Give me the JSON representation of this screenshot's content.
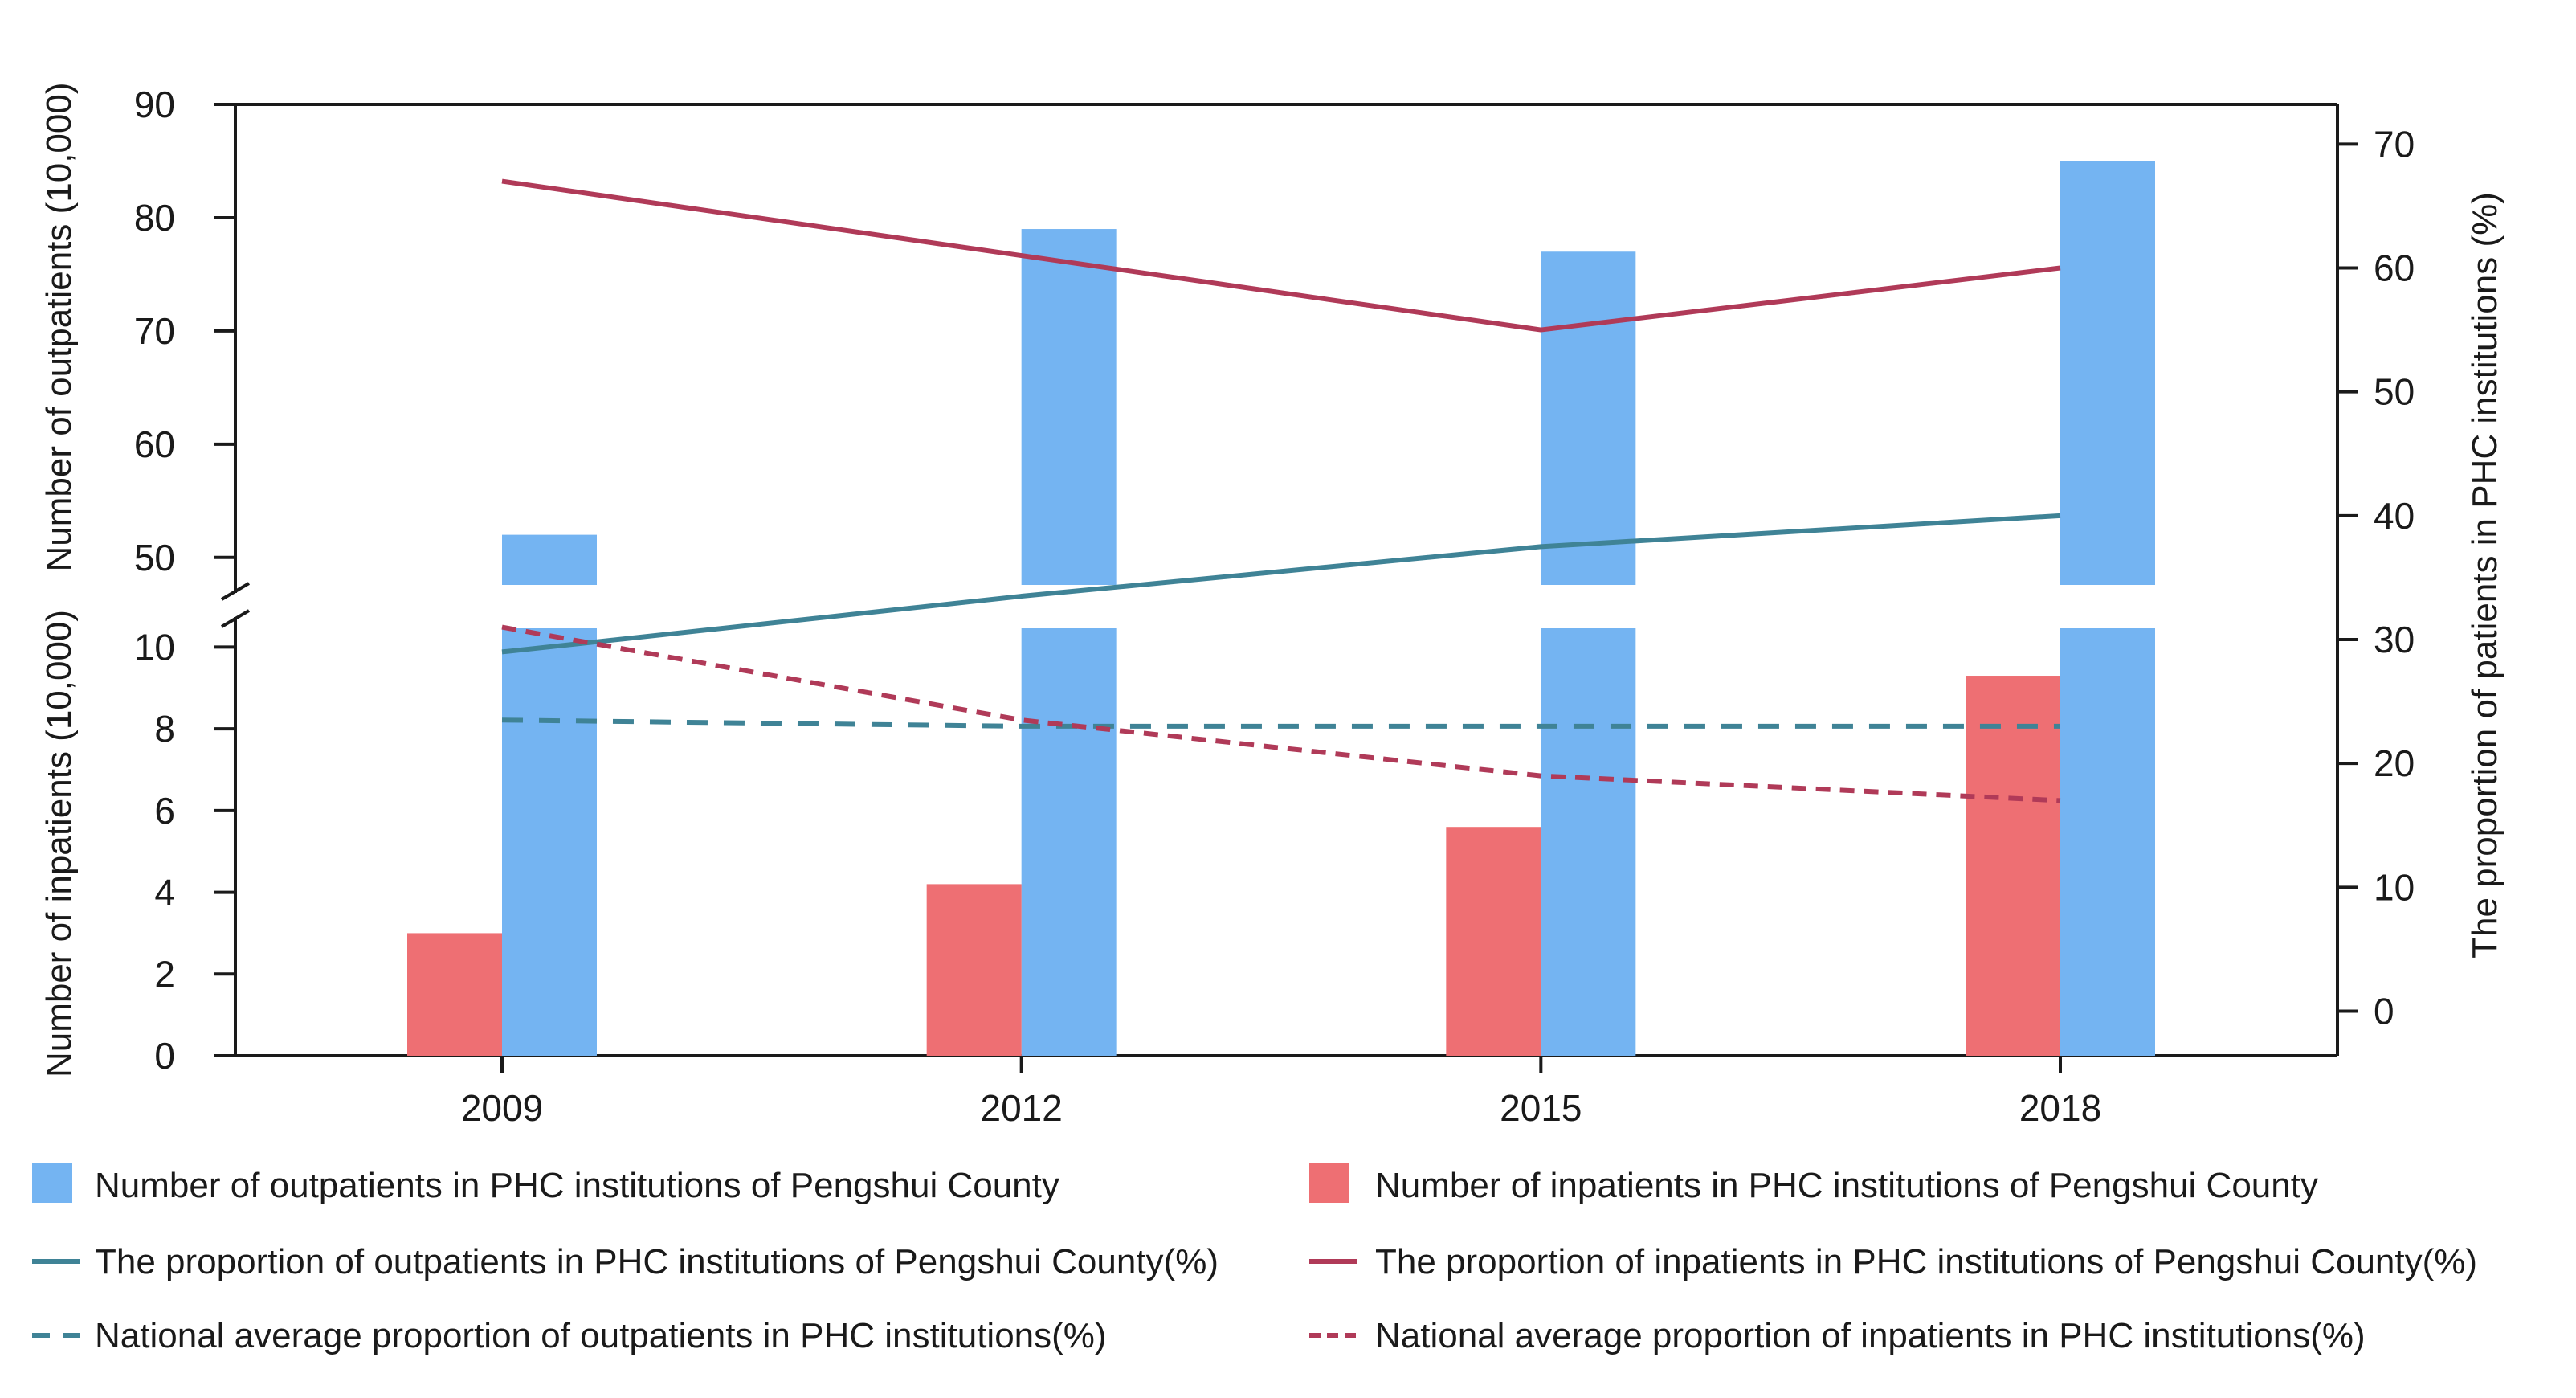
{
  "chart_data": {
    "type": "bar",
    "categories": [
      "2009",
      "2012",
      "2015",
      "2018"
    ],
    "y_left_upper": {
      "label": "Number of outpatients (10,000)",
      "range": [
        48,
        90
      ],
      "ticks": [
        "50",
        "60",
        "70",
        "80",
        "90"
      ],
      "tick_values": [
        50,
        60,
        70,
        80,
        90
      ]
    },
    "y_left_lower": {
      "label": "Number of inpatients (10,000)",
      "range": [
        0,
        10.5
      ],
      "ticks": [
        "0",
        "2",
        "4",
        "6",
        "8",
        "10"
      ],
      "tick_values": [
        0,
        2,
        4,
        6,
        8,
        10
      ]
    },
    "y_right": {
      "label": "The proportion of patients in PHC institutions (%)",
      "range": [
        -3.6,
        73.2
      ],
      "ticks": [
        "0",
        "10",
        "20",
        "30",
        "40",
        "50",
        "60",
        "70"
      ],
      "tick_values": [
        0,
        10,
        20,
        30,
        40,
        50,
        60,
        70
      ]
    },
    "bars": [
      {
        "name": "Number of outpatients in PHC institutions of Pengshui County",
        "color": "#74b4f2",
        "axis": "left-upper",
        "values": [
          52,
          79,
          77,
          85
        ]
      },
      {
        "name": "Number of inpatients in PHC institutions of Pengshui County",
        "color": "#ee6f73",
        "axis": "left-lower",
        "values": [
          3,
          4.2,
          5.6,
          9.3
        ]
      }
    ],
    "lines": [
      {
        "name": "The proportion of outpatients in PHC institutions of Pengshui County(%)",
        "color": "#3f8396",
        "style": "solid",
        "values": [
          29,
          33.5,
          37.5,
          40
        ]
      },
      {
        "name": "The proportion of inpatients in PHC institutions of Pengshui County(%)",
        "color": "#b03a58",
        "style": "solid",
        "values": [
          67,
          61,
          55,
          60
        ]
      },
      {
        "name": "National average proportion of outpatients in PHC institutions(%)",
        "color": "#3f8396",
        "style": "dashed",
        "values": [
          23.5,
          23,
          23,
          23
        ]
      },
      {
        "name": "National average proportion of inpatients in PHC institutions(%)",
        "color": "#b03a58",
        "style": "dotted",
        "values": [
          31,
          23.5,
          19,
          17
        ]
      }
    ]
  }
}
